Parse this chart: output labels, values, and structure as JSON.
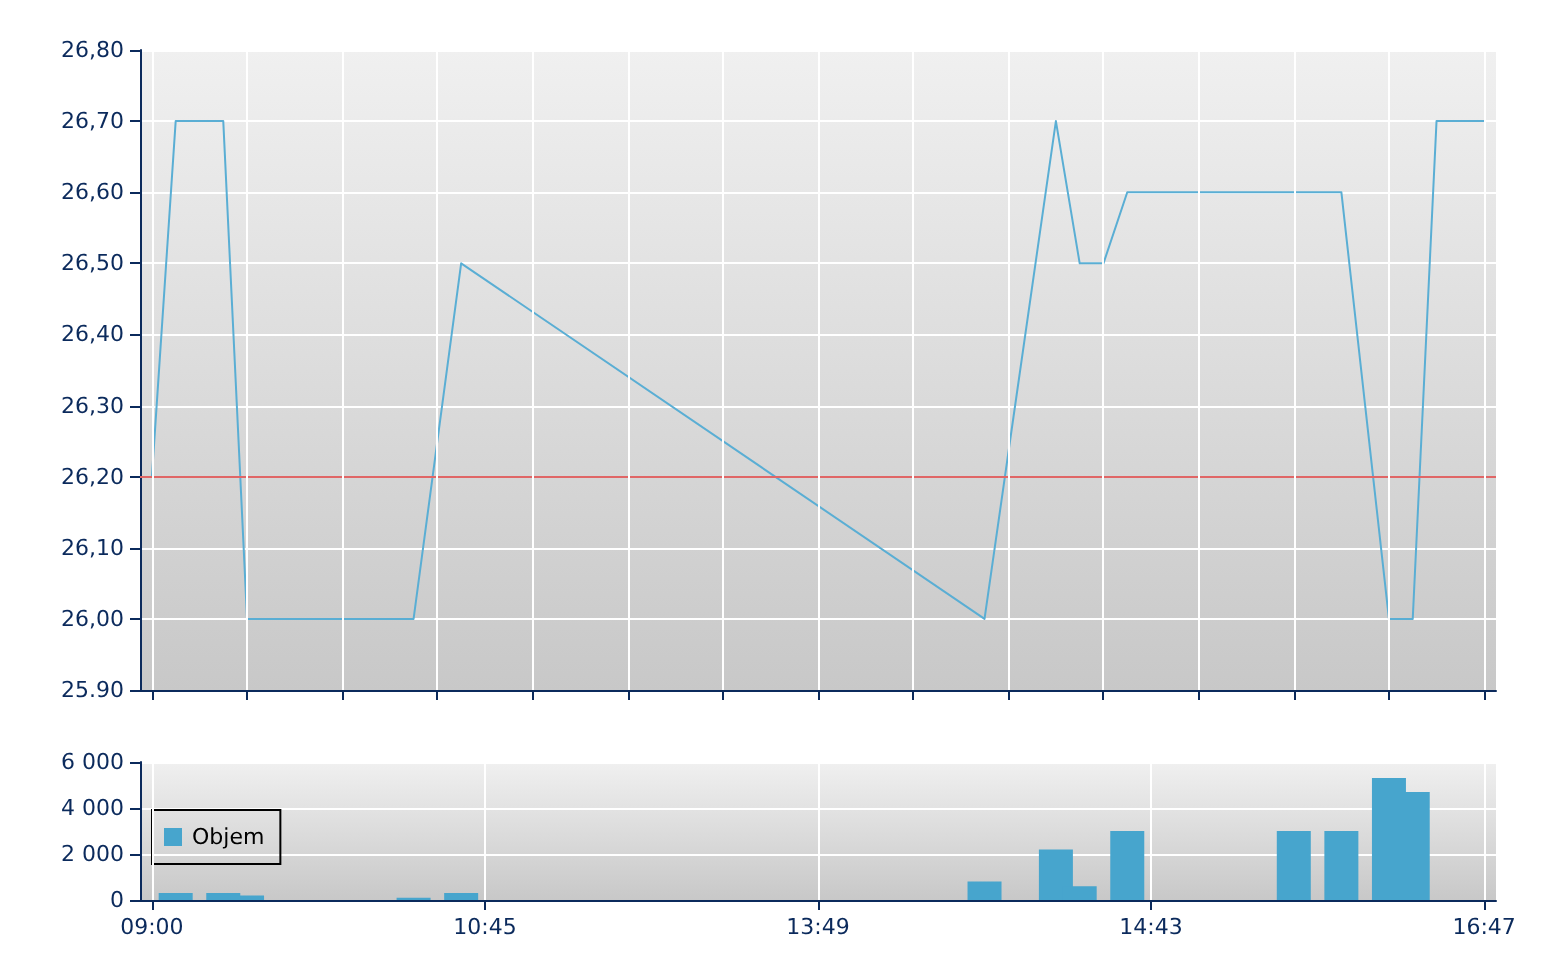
{
  "chart_data": [
    {
      "type": "line",
      "categories": [
        null,
        null,
        null,
        null,
        null,
        null,
        null,
        null,
        null,
        null,
        null,
        null,
        null,
        null,
        null,
        null,
        null,
        null,
        null,
        null,
        null,
        null,
        null,
        null,
        null,
        null,
        null,
        null,
        null,
        null,
        null,
        null,
        null,
        null,
        null,
        null,
        null,
        null,
        null,
        null,
        null,
        null,
        null,
        null,
        null,
        null,
        null,
        null,
        null,
        null,
        null,
        null,
        null,
        null,
        null,
        null,
        null
      ],
      "series": [
        {
          "color": "#5aaed4",
          "values": [
            26.2,
            26.7,
            null,
            26.7,
            26.0,
            null,
            null,
            null,
            null,
            null,
            null,
            26.0,
            null,
            26.5,
            null,
            null,
            null,
            null,
            null,
            null,
            null,
            null,
            null,
            null,
            null,
            null,
            null,
            null,
            null,
            null,
            null,
            null,
            null,
            null,
            null,
            26.0,
            null,
            null,
            26.7,
            26.5,
            26.5,
            26.6,
            null,
            null,
            null,
            null,
            null,
            null,
            null,
            null,
            26.6,
            26.3,
            26.0,
            26.0,
            26.7,
            null,
            26.7
          ]
        }
      ],
      "ylim": [
        25.9,
        26.8
      ],
      "yticks": [
        {
          "value": 25.9,
          "label": "25.90"
        },
        {
          "value": 26.0,
          "label": "26,00"
        },
        {
          "value": 26.1,
          "label": "26,10"
        },
        {
          "value": 26.2,
          "label": "26,20"
        },
        {
          "value": 26.3,
          "label": "26,30"
        },
        {
          "value": 26.4,
          "label": "26,40"
        },
        {
          "value": 26.5,
          "label": "26,50"
        },
        {
          "value": 26.6,
          "label": "26,60"
        },
        {
          "value": 26.7,
          "label": "26,70"
        },
        {
          "value": 26.8,
          "label": "26,80"
        }
      ],
      "ref_lines": [
        {
          "axis": "y",
          "value": 26.2,
          "color": "#e06666"
        }
      ],
      "grid": true
    },
    {
      "type": "bar",
      "categories": [
        "09:00",
        null,
        null,
        null,
        null,
        null,
        null,
        null,
        null,
        null,
        null,
        null,
        null,
        null,
        "10:45",
        null,
        null,
        null,
        null,
        null,
        null,
        null,
        null,
        null,
        null,
        null,
        null,
        null,
        "13:49",
        null,
        null,
        null,
        null,
        null,
        null,
        null,
        null,
        null,
        null,
        null,
        null,
        null,
        "14:43",
        null,
        null,
        null,
        null,
        null,
        null,
        null,
        null,
        null,
        null,
        null,
        null,
        null,
        "16:47"
      ],
      "series": [
        {
          "name": "Objem",
          "color": "#47a5cd",
          "values": [
            null,
            300,
            null,
            300,
            200,
            null,
            null,
            null,
            null,
            null,
            null,
            100,
            null,
            300,
            null,
            null,
            null,
            null,
            null,
            null,
            null,
            null,
            null,
            null,
            null,
            null,
            null,
            null,
            null,
            null,
            null,
            null,
            null,
            null,
            null,
            800,
            null,
            null,
            2200,
            600,
            null,
            3000,
            null,
            null,
            null,
            null,
            null,
            null,
            3000,
            null,
            3000,
            null,
            5300,
            4700,
            null,
            null,
            null
          ]
        }
      ],
      "ylim": [
        0,
        6000
      ],
      "yticks": [
        {
          "value": 0,
          "label": "0"
        },
        {
          "value": 2000,
          "label": "2 000"
        },
        {
          "value": 4000,
          "label": "4 000"
        },
        {
          "value": 6000,
          "label": "6 000"
        }
      ],
      "grid": true,
      "legend": "left"
    }
  ]
}
